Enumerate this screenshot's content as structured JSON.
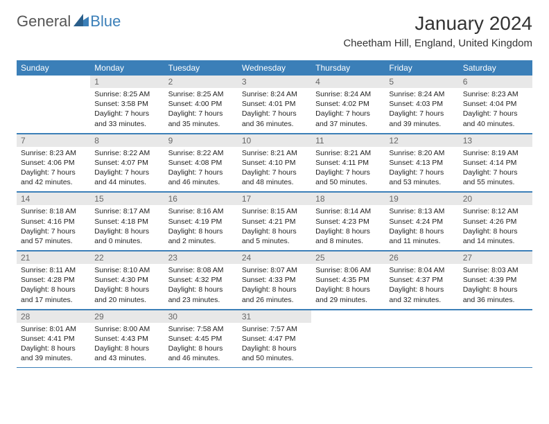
{
  "logo": {
    "part1": "General",
    "part2": "Blue"
  },
  "title": "January 2024",
  "location": "Cheetham Hill, England, United Kingdom",
  "colors": {
    "header_bg": "#3b7fb8",
    "daynum_bg": "#e8e8e8",
    "text": "#222222",
    "title_text": "#333333"
  },
  "weekdays": [
    "Sunday",
    "Monday",
    "Tuesday",
    "Wednesday",
    "Thursday",
    "Friday",
    "Saturday"
  ],
  "weeks": [
    [
      null,
      {
        "n": "1",
        "sr": "Sunrise: 8:25 AM",
        "ss": "Sunset: 3:58 PM",
        "d1": "Daylight: 7 hours",
        "d2": "and 33 minutes."
      },
      {
        "n": "2",
        "sr": "Sunrise: 8:25 AM",
        "ss": "Sunset: 4:00 PM",
        "d1": "Daylight: 7 hours",
        "d2": "and 35 minutes."
      },
      {
        "n": "3",
        "sr": "Sunrise: 8:24 AM",
        "ss": "Sunset: 4:01 PM",
        "d1": "Daylight: 7 hours",
        "d2": "and 36 minutes."
      },
      {
        "n": "4",
        "sr": "Sunrise: 8:24 AM",
        "ss": "Sunset: 4:02 PM",
        "d1": "Daylight: 7 hours",
        "d2": "and 37 minutes."
      },
      {
        "n": "5",
        "sr": "Sunrise: 8:24 AM",
        "ss": "Sunset: 4:03 PM",
        "d1": "Daylight: 7 hours",
        "d2": "and 39 minutes."
      },
      {
        "n": "6",
        "sr": "Sunrise: 8:23 AM",
        "ss": "Sunset: 4:04 PM",
        "d1": "Daylight: 7 hours",
        "d2": "and 40 minutes."
      }
    ],
    [
      {
        "n": "7",
        "sr": "Sunrise: 8:23 AM",
        "ss": "Sunset: 4:06 PM",
        "d1": "Daylight: 7 hours",
        "d2": "and 42 minutes."
      },
      {
        "n": "8",
        "sr": "Sunrise: 8:22 AM",
        "ss": "Sunset: 4:07 PM",
        "d1": "Daylight: 7 hours",
        "d2": "and 44 minutes."
      },
      {
        "n": "9",
        "sr": "Sunrise: 8:22 AM",
        "ss": "Sunset: 4:08 PM",
        "d1": "Daylight: 7 hours",
        "d2": "and 46 minutes."
      },
      {
        "n": "10",
        "sr": "Sunrise: 8:21 AM",
        "ss": "Sunset: 4:10 PM",
        "d1": "Daylight: 7 hours",
        "d2": "and 48 minutes."
      },
      {
        "n": "11",
        "sr": "Sunrise: 8:21 AM",
        "ss": "Sunset: 4:11 PM",
        "d1": "Daylight: 7 hours",
        "d2": "and 50 minutes."
      },
      {
        "n": "12",
        "sr": "Sunrise: 8:20 AM",
        "ss": "Sunset: 4:13 PM",
        "d1": "Daylight: 7 hours",
        "d2": "and 53 minutes."
      },
      {
        "n": "13",
        "sr": "Sunrise: 8:19 AM",
        "ss": "Sunset: 4:14 PM",
        "d1": "Daylight: 7 hours",
        "d2": "and 55 minutes."
      }
    ],
    [
      {
        "n": "14",
        "sr": "Sunrise: 8:18 AM",
        "ss": "Sunset: 4:16 PM",
        "d1": "Daylight: 7 hours",
        "d2": "and 57 minutes."
      },
      {
        "n": "15",
        "sr": "Sunrise: 8:17 AM",
        "ss": "Sunset: 4:18 PM",
        "d1": "Daylight: 8 hours",
        "d2": "and 0 minutes."
      },
      {
        "n": "16",
        "sr": "Sunrise: 8:16 AM",
        "ss": "Sunset: 4:19 PM",
        "d1": "Daylight: 8 hours",
        "d2": "and 2 minutes."
      },
      {
        "n": "17",
        "sr": "Sunrise: 8:15 AM",
        "ss": "Sunset: 4:21 PM",
        "d1": "Daylight: 8 hours",
        "d2": "and 5 minutes."
      },
      {
        "n": "18",
        "sr": "Sunrise: 8:14 AM",
        "ss": "Sunset: 4:23 PM",
        "d1": "Daylight: 8 hours",
        "d2": "and 8 minutes."
      },
      {
        "n": "19",
        "sr": "Sunrise: 8:13 AM",
        "ss": "Sunset: 4:24 PM",
        "d1": "Daylight: 8 hours",
        "d2": "and 11 minutes."
      },
      {
        "n": "20",
        "sr": "Sunrise: 8:12 AM",
        "ss": "Sunset: 4:26 PM",
        "d1": "Daylight: 8 hours",
        "d2": "and 14 minutes."
      }
    ],
    [
      {
        "n": "21",
        "sr": "Sunrise: 8:11 AM",
        "ss": "Sunset: 4:28 PM",
        "d1": "Daylight: 8 hours",
        "d2": "and 17 minutes."
      },
      {
        "n": "22",
        "sr": "Sunrise: 8:10 AM",
        "ss": "Sunset: 4:30 PM",
        "d1": "Daylight: 8 hours",
        "d2": "and 20 minutes."
      },
      {
        "n": "23",
        "sr": "Sunrise: 8:08 AM",
        "ss": "Sunset: 4:32 PM",
        "d1": "Daylight: 8 hours",
        "d2": "and 23 minutes."
      },
      {
        "n": "24",
        "sr": "Sunrise: 8:07 AM",
        "ss": "Sunset: 4:33 PM",
        "d1": "Daylight: 8 hours",
        "d2": "and 26 minutes."
      },
      {
        "n": "25",
        "sr": "Sunrise: 8:06 AM",
        "ss": "Sunset: 4:35 PM",
        "d1": "Daylight: 8 hours",
        "d2": "and 29 minutes."
      },
      {
        "n": "26",
        "sr": "Sunrise: 8:04 AM",
        "ss": "Sunset: 4:37 PM",
        "d1": "Daylight: 8 hours",
        "d2": "and 32 minutes."
      },
      {
        "n": "27",
        "sr": "Sunrise: 8:03 AM",
        "ss": "Sunset: 4:39 PM",
        "d1": "Daylight: 8 hours",
        "d2": "and 36 minutes."
      }
    ],
    [
      {
        "n": "28",
        "sr": "Sunrise: 8:01 AM",
        "ss": "Sunset: 4:41 PM",
        "d1": "Daylight: 8 hours",
        "d2": "and 39 minutes."
      },
      {
        "n": "29",
        "sr": "Sunrise: 8:00 AM",
        "ss": "Sunset: 4:43 PM",
        "d1": "Daylight: 8 hours",
        "d2": "and 43 minutes."
      },
      {
        "n": "30",
        "sr": "Sunrise: 7:58 AM",
        "ss": "Sunset: 4:45 PM",
        "d1": "Daylight: 8 hours",
        "d2": "and 46 minutes."
      },
      {
        "n": "31",
        "sr": "Sunrise: 7:57 AM",
        "ss": "Sunset: 4:47 PM",
        "d1": "Daylight: 8 hours",
        "d2": "and 50 minutes."
      },
      null,
      null,
      null
    ]
  ]
}
